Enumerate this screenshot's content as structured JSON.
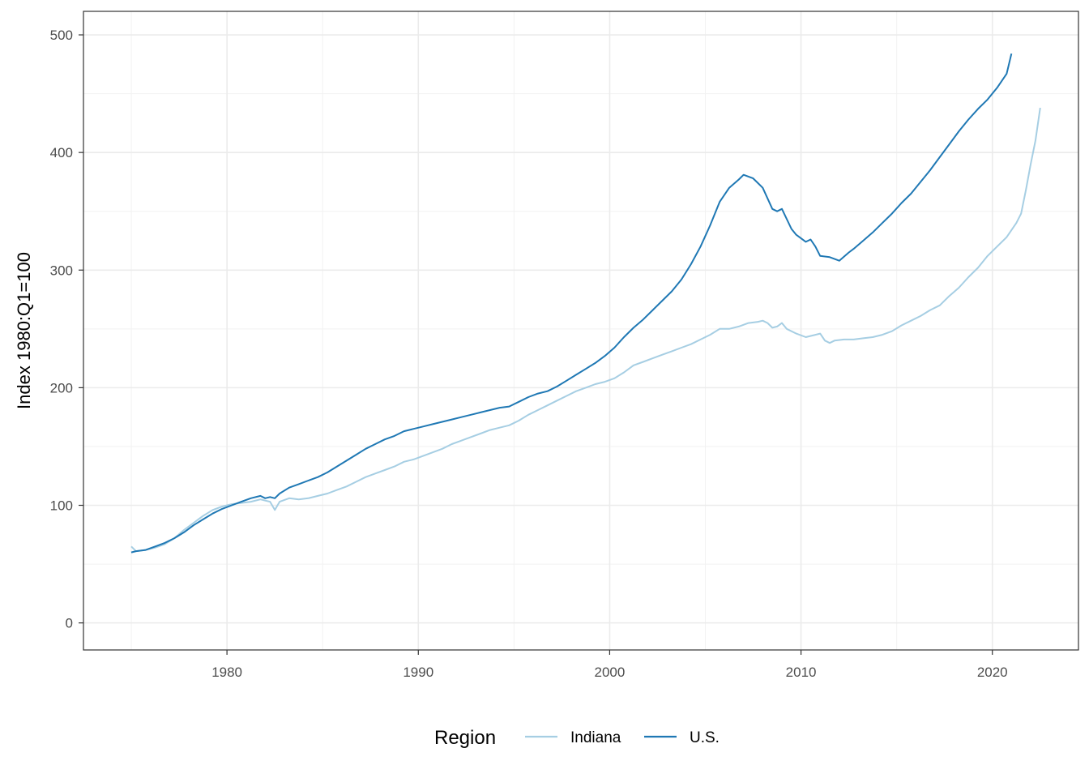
{
  "chart_data": {
    "type": "line",
    "title": "",
    "xlabel": "",
    "ylabel": "Index 1980:Q1=100",
    "xlim": [
      1972.5,
      2024.5
    ],
    "ylim": [
      -23,
      520
    ],
    "x_ticks": [
      1980,
      1990,
      2000,
      2010,
      2020
    ],
    "x_tick_labels": [
      "1980",
      "1990",
      "2000",
      "2010",
      "2020"
    ],
    "y_ticks": [
      0,
      100,
      200,
      300,
      400,
      500
    ],
    "y_tick_labels": [
      "0",
      "100",
      "200",
      "300",
      "400",
      "500"
    ],
    "x_minor": [
      1975,
      1985,
      1995,
      2005,
      2015
    ],
    "y_minor": [
      50,
      150,
      250,
      350,
      450
    ],
    "grid": true,
    "legend": {
      "title": "Region",
      "position": "bottom"
    },
    "series": [
      {
        "name": "Indiana",
        "color": "#a6cee3",
        "points": [
          [
            1975.0,
            65
          ],
          [
            1975.25,
            61
          ],
          [
            1975.75,
            62
          ],
          [
            1976.25,
            64
          ],
          [
            1976.75,
            67
          ],
          [
            1977.25,
            72
          ],
          [
            1977.75,
            79
          ],
          [
            1978.25,
            85
          ],
          [
            1978.75,
            91
          ],
          [
            1979.25,
            96
          ],
          [
            1979.75,
            99
          ],
          [
            1980.25,
            101
          ],
          [
            1980.75,
            102
          ],
          [
            1981.25,
            103
          ],
          [
            1981.75,
            105
          ],
          [
            1982.0,
            104
          ],
          [
            1982.25,
            103
          ],
          [
            1982.5,
            96
          ],
          [
            1982.75,
            103
          ],
          [
            1983.25,
            106
          ],
          [
            1983.75,
            105
          ],
          [
            1984.25,
            106
          ],
          [
            1984.75,
            108
          ],
          [
            1985.25,
            110
          ],
          [
            1985.75,
            113
          ],
          [
            1986.25,
            116
          ],
          [
            1986.75,
            120
          ],
          [
            1987.25,
            124
          ],
          [
            1987.75,
            127
          ],
          [
            1988.25,
            130
          ],
          [
            1988.75,
            133
          ],
          [
            1989.25,
            137
          ],
          [
            1989.75,
            139
          ],
          [
            1990.25,
            142
          ],
          [
            1990.75,
            145
          ],
          [
            1991.25,
            148
          ],
          [
            1991.75,
            152
          ],
          [
            1992.25,
            155
          ],
          [
            1992.75,
            158
          ],
          [
            1993.25,
            161
          ],
          [
            1993.75,
            164
          ],
          [
            1994.25,
            166
          ],
          [
            1994.75,
            168
          ],
          [
            1995.25,
            172
          ],
          [
            1995.75,
            177
          ],
          [
            1996.25,
            181
          ],
          [
            1996.75,
            185
          ],
          [
            1997.25,
            189
          ],
          [
            1997.75,
            193
          ],
          [
            1998.25,
            197
          ],
          [
            1998.75,
            200
          ],
          [
            1999.25,
            203
          ],
          [
            1999.75,
            205
          ],
          [
            2000.25,
            208
          ],
          [
            2000.75,
            213
          ],
          [
            2001.25,
            219
          ],
          [
            2001.75,
            222
          ],
          [
            2002.25,
            225
          ],
          [
            2002.75,
            228
          ],
          [
            2003.25,
            231
          ],
          [
            2003.75,
            234
          ],
          [
            2004.25,
            237
          ],
          [
            2004.75,
            241
          ],
          [
            2005.25,
            245
          ],
          [
            2005.75,
            250
          ],
          [
            2006.25,
            250
          ],
          [
            2006.75,
            252
          ],
          [
            2007.25,
            255
          ],
          [
            2007.75,
            256
          ],
          [
            2008.0,
            257
          ],
          [
            2008.25,
            255
          ],
          [
            2008.5,
            251
          ],
          [
            2008.75,
            252
          ],
          [
            2009.0,
            255
          ],
          [
            2009.25,
            250
          ],
          [
            2009.75,
            246
          ],
          [
            2010.25,
            243
          ],
          [
            2010.75,
            245
          ],
          [
            2011.0,
            246
          ],
          [
            2011.25,
            240
          ],
          [
            2011.5,
            238
          ],
          [
            2011.75,
            240
          ],
          [
            2012.25,
            241
          ],
          [
            2012.75,
            241
          ],
          [
            2013.25,
            242
          ],
          [
            2013.75,
            243
          ],
          [
            2014.25,
            245
          ],
          [
            2014.75,
            248
          ],
          [
            2015.25,
            253
          ],
          [
            2015.75,
            257
          ],
          [
            2016.25,
            261
          ],
          [
            2016.75,
            266
          ],
          [
            2017.25,
            270
          ],
          [
            2017.75,
            278
          ],
          [
            2018.25,
            285
          ],
          [
            2018.75,
            294
          ],
          [
            2019.25,
            302
          ],
          [
            2019.75,
            312
          ],
          [
            2020.25,
            320
          ],
          [
            2020.75,
            328
          ],
          [
            2021.25,
            340
          ],
          [
            2021.5,
            348
          ],
          [
            2021.75,
            368
          ],
          [
            2022.0,
            390
          ],
          [
            2022.25,
            410
          ],
          [
            2022.5,
            438
          ]
        ]
      },
      {
        "name": "U.S.",
        "color": "#1f78b4",
        "points": [
          [
            1975.0,
            60
          ],
          [
            1975.25,
            61
          ],
          [
            1975.75,
            62
          ],
          [
            1976.25,
            65
          ],
          [
            1976.75,
            68
          ],
          [
            1977.25,
            72
          ],
          [
            1977.75,
            77
          ],
          [
            1978.25,
            83
          ],
          [
            1978.75,
            88
          ],
          [
            1979.25,
            93
          ],
          [
            1979.75,
            97
          ],
          [
            1980.25,
            100
          ],
          [
            1980.75,
            103
          ],
          [
            1981.25,
            106
          ],
          [
            1981.75,
            108
          ],
          [
            1982.0,
            106
          ],
          [
            1982.25,
            107
          ],
          [
            1982.5,
            106
          ],
          [
            1982.75,
            110
          ],
          [
            1983.25,
            115
          ],
          [
            1983.75,
            118
          ],
          [
            1984.25,
            121
          ],
          [
            1984.75,
            124
          ],
          [
            1985.25,
            128
          ],
          [
            1985.75,
            133
          ],
          [
            1986.25,
            138
          ],
          [
            1986.75,
            143
          ],
          [
            1987.25,
            148
          ],
          [
            1987.75,
            152
          ],
          [
            1988.25,
            156
          ],
          [
            1988.75,
            159
          ],
          [
            1989.25,
            163
          ],
          [
            1989.75,
            165
          ],
          [
            1990.25,
            167
          ],
          [
            1990.75,
            169
          ],
          [
            1991.25,
            171
          ],
          [
            1991.75,
            173
          ],
          [
            1992.25,
            175
          ],
          [
            1992.75,
            177
          ],
          [
            1993.25,
            179
          ],
          [
            1993.75,
            181
          ],
          [
            1994.25,
            183
          ],
          [
            1994.75,
            184
          ],
          [
            1995.25,
            188
          ],
          [
            1995.75,
            192
          ],
          [
            1996.25,
            195
          ],
          [
            1996.75,
            197
          ],
          [
            1997.25,
            201
          ],
          [
            1997.75,
            206
          ],
          [
            1998.25,
            211
          ],
          [
            1998.75,
            216
          ],
          [
            1999.25,
            221
          ],
          [
            1999.75,
            227
          ],
          [
            2000.25,
            234
          ],
          [
            2000.75,
            243
          ],
          [
            2001.25,
            251
          ],
          [
            2001.75,
            258
          ],
          [
            2002.25,
            266
          ],
          [
            2002.75,
            274
          ],
          [
            2003.25,
            282
          ],
          [
            2003.75,
            292
          ],
          [
            2004.25,
            305
          ],
          [
            2004.75,
            320
          ],
          [
            2005.25,
            338
          ],
          [
            2005.75,
            358
          ],
          [
            2006.25,
            370
          ],
          [
            2006.75,
            377
          ],
          [
            2007.0,
            381
          ],
          [
            2007.5,
            378
          ],
          [
            2007.75,
            374
          ],
          [
            2008.0,
            370
          ],
          [
            2008.5,
            352
          ],
          [
            2008.75,
            350
          ],
          [
            2009.0,
            352
          ],
          [
            2009.5,
            335
          ],
          [
            2009.75,
            330
          ],
          [
            2010.25,
            324
          ],
          [
            2010.5,
            326
          ],
          [
            2010.75,
            320
          ],
          [
            2011.0,
            312
          ],
          [
            2011.5,
            311
          ],
          [
            2012.0,
            308
          ],
          [
            2012.5,
            315
          ],
          [
            2012.75,
            318
          ],
          [
            2013.25,
            325
          ],
          [
            2013.75,
            332
          ],
          [
            2014.25,
            340
          ],
          [
            2014.75,
            348
          ],
          [
            2015.25,
            357
          ],
          [
            2015.75,
            365
          ],
          [
            2016.25,
            375
          ],
          [
            2016.75,
            385
          ],
          [
            2017.25,
            396
          ],
          [
            2017.75,
            407
          ],
          [
            2018.25,
            418
          ],
          [
            2018.75,
            428
          ],
          [
            2019.25,
            437
          ],
          [
            2019.75,
            445
          ],
          [
            2020.25,
            455
          ],
          [
            2020.75,
            467
          ],
          [
            2021.0,
            484
          ]
        ]
      }
    ]
  }
}
